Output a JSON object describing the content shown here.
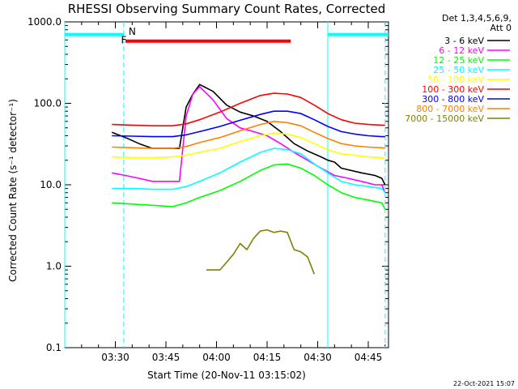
{
  "chart_data": {
    "type": "line",
    "title": "RHESSI Observing Summary Count Rates, Corrected",
    "xlabel": "Start Time (20-Nov-11 03:15:02)",
    "ylabel": "Corrected Count Rate (s⁻¹ detector⁻¹)",
    "xlim_min": [
      0,
      96
    ],
    "ylim": [
      0.1,
      1000
    ],
    "yscale": "log",
    "yticks": [
      0.1,
      1,
      10,
      100,
      1000
    ],
    "ytick_labels": [
      "0.1",
      "1.0",
      "10.0",
      "100.0",
      "1000.0"
    ],
    "xticks_min": [
      15,
      30,
      45,
      60,
      75,
      90
    ],
    "xtick_labels": [
      "03:30",
      "03:45",
      "04:00",
      "04:15",
      "04:30",
      "04:45"
    ],
    "legend_header": [
      "Det 1,3,4,5,6,9,",
      "Att 0"
    ],
    "legend_position": "right",
    "series": [
      {
        "name": "3 - 6 keV",
        "color": "#000000",
        "x": [
          14,
          18,
          22,
          26,
          34,
          36,
          38,
          40,
          44,
          48,
          52,
          56,
          60,
          64,
          68,
          72,
          76,
          78,
          80,
          82,
          88,
          92,
          94,
          95
        ],
        "y": [
          44,
          38,
          32,
          28,
          28,
          90,
          130,
          170,
          140,
          95,
          78,
          70,
          60,
          45,
          32,
          26,
          22,
          20,
          19,
          16,
          14,
          13,
          12,
          10
        ]
      },
      {
        "name": "6 - 12 keV",
        "color": "#ff00ff",
        "x": [
          14,
          18,
          22,
          26,
          34,
          36,
          38,
          40,
          44,
          48,
          52,
          56,
          60,
          64,
          68,
          72,
          76,
          80,
          84,
          88,
          92,
          94,
          95
        ],
        "y": [
          14,
          13,
          12,
          11,
          11,
          70,
          130,
          160,
          110,
          65,
          50,
          45,
          40,
          32,
          25,
          20,
          16,
          13,
          12,
          11,
          10,
          10,
          8
        ]
      },
      {
        "name": "12 - 25 keV",
        "color": "#00ff00",
        "x": [
          14,
          20,
          26,
          32,
          36,
          40,
          46,
          52,
          58,
          62,
          66,
          70,
          74,
          78,
          82,
          86,
          90,
          94,
          95
        ],
        "y": [
          6,
          5.8,
          5.6,
          5.4,
          6,
          7,
          8.5,
          11,
          15,
          17.5,
          18,
          16,
          13,
          10,
          8,
          7,
          6.5,
          6,
          5
        ]
      },
      {
        "name": "25 - 50 keV",
        "color": "#00ffff",
        "x": [
          14,
          20,
          26,
          32,
          36,
          40,
          46,
          52,
          58,
          62,
          66,
          70,
          74,
          78,
          82,
          86,
          90,
          94,
          95
        ],
        "y": [
          9,
          9,
          8.8,
          8.8,
          9.5,
          11,
          14,
          19,
          25,
          28,
          27,
          24,
          18,
          14,
          11,
          10,
          9.5,
          9,
          8
        ]
      },
      {
        "name": "50 - 100 keV",
        "color": "#ffff00",
        "x": [
          14,
          20,
          26,
          32,
          36,
          40,
          46,
          52,
          58,
          62,
          66,
          70,
          74,
          78,
          82,
          86,
          90,
          94,
          95
        ],
        "y": [
          22,
          21.5,
          21.5,
          22,
          23,
          25,
          28,
          34,
          40,
          43,
          42,
          38,
          32,
          27,
          24,
          23,
          22,
          21.5,
          21
        ]
      },
      {
        "name": "100 - 300 keV",
        "color": "#ff0000",
        "x": [
          14,
          20,
          26,
          32,
          36,
          40,
          46,
          52,
          58,
          62,
          66,
          70,
          74,
          78,
          82,
          86,
          90,
          94,
          95
        ],
        "y": [
          55,
          54,
          53,
          53,
          56,
          63,
          78,
          100,
          125,
          133,
          130,
          118,
          95,
          75,
          63,
          57,
          55,
          54,
          54
        ]
      },
      {
        "name": "300 - 800 keV",
        "color": "#0000ff",
        "x": [
          14,
          20,
          26,
          32,
          36,
          40,
          46,
          52,
          58,
          62,
          66,
          70,
          74,
          78,
          82,
          86,
          90,
          94,
          95
        ],
        "y": [
          40,
          39.5,
          39,
          39,
          41,
          45,
          52,
          62,
          73,
          80,
          80,
          75,
          63,
          52,
          45,
          42,
          40,
          39,
          39
        ]
      },
      {
        "name": "800 - 7000 keV",
        "color": "#ff8000",
        "x": [
          14,
          20,
          26,
          32,
          36,
          40,
          46,
          52,
          58,
          62,
          66,
          70,
          74,
          78,
          82,
          86,
          90,
          94,
          95
        ],
        "y": [
          29,
          28.5,
          28,
          28,
          29.5,
          33,
          38,
          46,
          55,
          60,
          58,
          53,
          44,
          37,
          32,
          30,
          29,
          28.5,
          28
        ]
      },
      {
        "name": "7000 - 15000 keV",
        "color": "#808000",
        "x": [
          42,
          46,
          47,
          50,
          52,
          54,
          56,
          58,
          60,
          62,
          64,
          66,
          68,
          70,
          72,
          74
        ],
        "y": [
          0.9,
          0.9,
          1.0,
          1.4,
          1.9,
          1.6,
          2.2,
          2.7,
          2.8,
          2.6,
          2.7,
          2.6,
          1.6,
          1.5,
          1.3,
          0.8
        ]
      }
    ],
    "annotations": [
      {
        "text": "F",
        "color": "#ff0000",
        "x_min": 17.5,
        "y": 600
      },
      {
        "text": "N",
        "color": "#00ffff",
        "x_min": 20,
        "y": 760
      }
    ],
    "bars": [
      {
        "label": "F",
        "color": "#ff0000",
        "x_start": 18,
        "x_end": 67,
        "y": 580
      },
      {
        "label": "N",
        "color": "#00ffff",
        "x_start": 0,
        "x_end": 17.5,
        "y": 700
      },
      {
        "label": "N",
        "color": "#00ffff",
        "x_start": 78,
        "x_end": 96,
        "y": 700
      }
    ],
    "vlines_solid_min": [
      0,
      78
    ],
    "vlines_dashed_min": [
      17.5,
      95
    ],
    "footer_stamp": "22-Oct-2021 15:07"
  }
}
